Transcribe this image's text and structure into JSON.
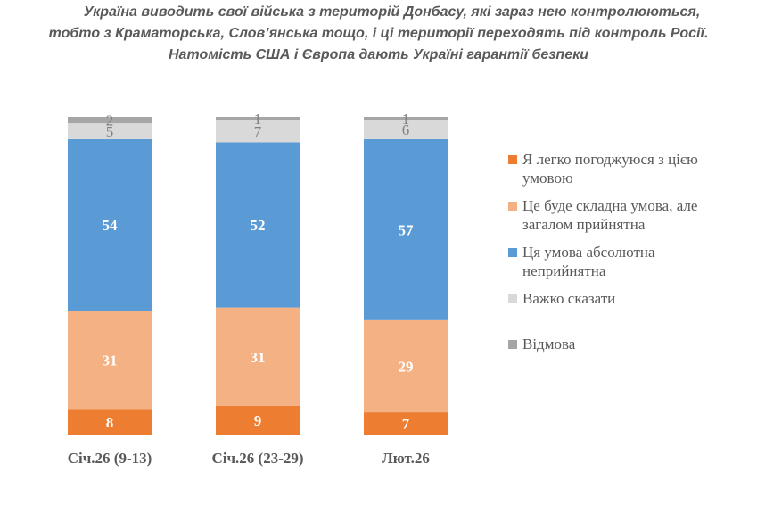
{
  "chart_data": {
    "type": "bar",
    "stacked": true,
    "title": [
      "Україна виводить свої війська з територій Донбасу, які зараз нею контролюються,",
      "тобто з Краматорська, Слов’янська тощо, і ці території переходять під контроль Росії.",
      "Натомість США і Європа дають Україні гарантії безпеки"
    ],
    "categories": [
      "Січ.26 (9-13)",
      "Січ.26 (23-29)",
      "Лют.26"
    ],
    "series": [
      {
        "name": "Я легко погоджуюся з цією умовою",
        "color": "#ed7d31",
        "label_color": "#ffffff",
        "values": [
          8,
          9,
          7
        ]
      },
      {
        "name": "Це буде складна умова, але загалом прийнятна",
        "color": "#f4b183",
        "label_color": "#ffffff",
        "values": [
          31,
          31,
          29
        ]
      },
      {
        "name": "Ця умова абсолютна неприйнятна",
        "color": "#5b9bd5",
        "label_color": "#ffffff",
        "values": [
          54,
          52,
          57
        ]
      },
      {
        "name": "Важко сказати",
        "color": "#d9d9d9",
        "label_color": "#808080",
        "values": [
          5,
          7,
          6
        ]
      },
      {
        "name": "Відмова",
        "color": "#a6a6a6",
        "label_color": "#808080",
        "values": [
          2,
          1,
          1
        ]
      }
    ],
    "ylim": [
      0,
      100
    ],
    "xlabel": "",
    "ylabel": "",
    "grid": false,
    "legend": "right"
  }
}
